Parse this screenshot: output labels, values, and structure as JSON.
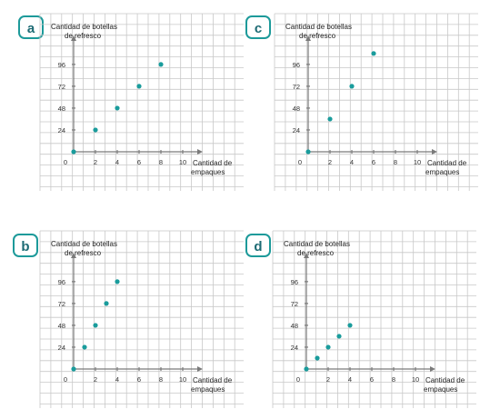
{
  "chart_data": [
    {
      "panel": "a",
      "type": "scatter",
      "ylabel_line1": "Cantidad de botellas",
      "ylabel_line2": "de refresco",
      "xlabel_line1": "Cantidad de",
      "xlabel_line2": "empaques",
      "x_ticks": [
        "0",
        "2",
        "4",
        "6",
        "8",
        "10"
      ],
      "y_ticks": [
        "24",
        "48",
        "72",
        "96"
      ],
      "xlim": [
        0,
        10
      ],
      "ylim": [
        0,
        96
      ],
      "points": [
        {
          "x": 0,
          "y": 0
        },
        {
          "x": 2,
          "y": 24
        },
        {
          "x": 4,
          "y": 48
        },
        {
          "x": 6,
          "y": 72
        },
        {
          "x": 8,
          "y": 96
        }
      ]
    },
    {
      "panel": "c",
      "type": "scatter",
      "ylabel_line1": "Cantidad de botellas",
      "ylabel_line2": "de refresco",
      "xlabel_line1": "Cantidad de",
      "xlabel_line2": "empaques",
      "x_ticks": [
        "0",
        "2",
        "4",
        "6",
        "8",
        "10"
      ],
      "y_ticks": [
        "24",
        "48",
        "72",
        "96"
      ],
      "xlim": [
        0,
        10
      ],
      "ylim": [
        0,
        96
      ],
      "points": [
        {
          "x": 0,
          "y": 0
        },
        {
          "x": 2,
          "y": 36
        },
        {
          "x": 4,
          "y": 72
        },
        {
          "x": 6,
          "y": 108
        }
      ]
    },
    {
      "panel": "b",
      "type": "scatter",
      "ylabel_line1": "Cantidad de botellas",
      "ylabel_line2": "de refresco",
      "xlabel_line1": "Cantidad de",
      "xlabel_line2": "empaques",
      "x_ticks": [
        "0",
        "2",
        "4",
        "6",
        "8",
        "10"
      ],
      "y_ticks": [
        "24",
        "48",
        "72",
        "96"
      ],
      "xlim": [
        0,
        10
      ],
      "ylim": [
        0,
        96
      ],
      "points": [
        {
          "x": 0,
          "y": 0
        },
        {
          "x": 1,
          "y": 24
        },
        {
          "x": 2,
          "y": 48
        },
        {
          "x": 3,
          "y": 72
        },
        {
          "x": 4,
          "y": 96
        }
      ]
    },
    {
      "panel": "d",
      "type": "scatter",
      "ylabel_line1": "Cantidad de botellas",
      "ylabel_line2": "de refresco",
      "xlabel_line1": "Cantidad de",
      "xlabel_line2": "empaques",
      "x_ticks": [
        "0",
        "2",
        "4",
        "6",
        "8",
        "10"
      ],
      "y_ticks": [
        "24",
        "48",
        "72",
        "96"
      ],
      "xlim": [
        0,
        10
      ],
      "ylim": [
        0,
        96
      ],
      "points": [
        {
          "x": 0,
          "y": 0
        },
        {
          "x": 1,
          "y": 12
        },
        {
          "x": 2,
          "y": 24
        },
        {
          "x": 3,
          "y": 36
        },
        {
          "x": 4,
          "y": 48
        }
      ]
    }
  ],
  "colors": {
    "point": "#1a9c9c",
    "badge_border": "#1d9a9a",
    "badge_text": "#1d6b74",
    "grid": "#c8c8c8"
  }
}
